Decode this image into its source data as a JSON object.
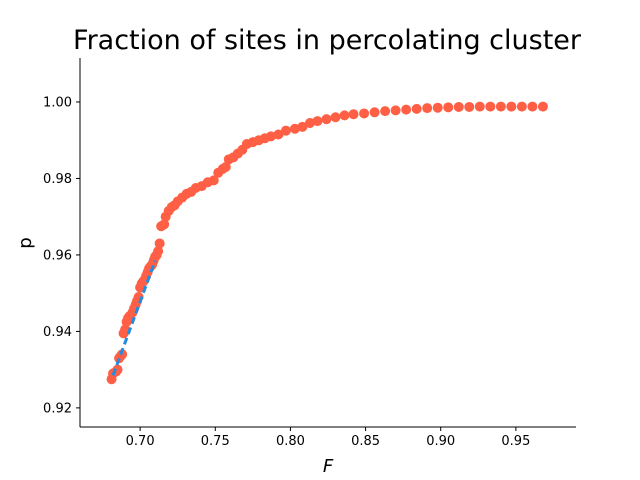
{
  "chart_data": {
    "type": "scatter",
    "title": "Fraction of sites in percolating cluster",
    "xlabel": "F",
    "ylabel": "p",
    "xlim": [
      0.66,
      0.99
    ],
    "ylim": [
      0.915,
      1.0115
    ],
    "xticks": [
      0.7,
      0.75,
      0.8,
      0.85,
      0.9,
      0.95
    ],
    "xtick_labels": [
      "0.70",
      "0.75",
      "0.80",
      "0.85",
      "0.90",
      "0.95"
    ],
    "yticks": [
      0.92,
      0.94,
      0.96,
      0.98,
      1.0
    ],
    "ytick_labels": [
      "0.92",
      "0.94",
      "0.96",
      "0.98",
      "1.00"
    ],
    "grid": false,
    "series": [
      {
        "color": "#ff5f45",
        "marker": "circle",
        "points": [
          [
            0.681,
            0.9275
          ],
          [
            0.682,
            0.929
          ],
          [
            0.684,
            0.9295
          ],
          [
            0.685,
            0.93
          ],
          [
            0.686,
            0.933
          ],
          [
            0.687,
            0.9335
          ],
          [
            0.688,
            0.934
          ],
          [
            0.689,
            0.9395
          ],
          [
            0.69,
            0.9405
          ],
          [
            0.691,
            0.9425
          ],
          [
            0.692,
            0.9435
          ],
          [
            0.693,
            0.944
          ],
          [
            0.695,
            0.945
          ],
          [
            0.696,
            0.946
          ],
          [
            0.697,
            0.947
          ],
          [
            0.698,
            0.948
          ],
          [
            0.699,
            0.949
          ],
          [
            0.7,
            0.9515
          ],
          [
            0.701,
            0.9525
          ],
          [
            0.702,
            0.953
          ],
          [
            0.703,
            0.9535
          ],
          [
            0.704,
            0.9545
          ],
          [
            0.705,
            0.9555
          ],
          [
            0.706,
            0.9565
          ],
          [
            0.707,
            0.957
          ],
          [
            0.708,
            0.9575
          ],
          [
            0.709,
            0.9585
          ],
          [
            0.71,
            0.9595
          ],
          [
            0.711,
            0.96
          ],
          [
            0.712,
            0.961
          ],
          [
            0.713,
            0.963
          ],
          [
            0.714,
            0.9675
          ],
          [
            0.716,
            0.968
          ],
          [
            0.717,
            0.97
          ],
          [
            0.719,
            0.9715
          ],
          [
            0.721,
            0.9725
          ],
          [
            0.723,
            0.973
          ],
          [
            0.725,
            0.974
          ],
          [
            0.728,
            0.975
          ],
          [
            0.731,
            0.976
          ],
          [
            0.734,
            0.9765
          ],
          [
            0.737,
            0.9775
          ],
          [
            0.741,
            0.978
          ],
          [
            0.745,
            0.979
          ],
          [
            0.749,
            0.9795
          ],
          [
            0.752,
            0.9815
          ],
          [
            0.755,
            0.9825
          ],
          [
            0.757,
            0.983
          ],
          [
            0.759,
            0.985
          ],
          [
            0.762,
            0.9855
          ],
          [
            0.765,
            0.9865
          ],
          [
            0.768,
            0.9875
          ],
          [
            0.771,
            0.989
          ],
          [
            0.775,
            0.9895
          ],
          [
            0.779,
            0.99
          ],
          [
            0.783,
            0.9905
          ],
          [
            0.787,
            0.991
          ],
          [
            0.792,
            0.9915
          ],
          [
            0.797,
            0.9925
          ],
          [
            0.803,
            0.993
          ],
          [
            0.808,
            0.9935
          ],
          [
            0.813,
            0.9945
          ],
          [
            0.818,
            0.995
          ],
          [
            0.824,
            0.9955
          ],
          [
            0.83,
            0.996
          ],
          [
            0.836,
            0.9965
          ],
          [
            0.842,
            0.9968
          ],
          [
            0.849,
            0.997
          ],
          [
            0.856,
            0.9973
          ],
          [
            0.863,
            0.9976
          ],
          [
            0.87,
            0.9978
          ],
          [
            0.877,
            0.998
          ],
          [
            0.884,
            0.9982
          ],
          [
            0.891,
            0.9984
          ],
          [
            0.898,
            0.9985
          ],
          [
            0.905,
            0.9986
          ],
          [
            0.912,
            0.9987
          ],
          [
            0.919,
            0.9987
          ],
          [
            0.926,
            0.9988
          ],
          [
            0.933,
            0.9988
          ],
          [
            0.94,
            0.9988
          ],
          [
            0.947,
            0.9988
          ],
          [
            0.954,
            0.9988
          ],
          [
            0.961,
            0.9988
          ],
          [
            0.968,
            0.9988
          ]
        ]
      },
      {
        "color": "#1f8ee0",
        "line_style": "dashed",
        "points": [
          [
            0.682,
            0.9285
          ],
          [
            0.71,
            0.9585
          ]
        ]
      }
    ]
  }
}
